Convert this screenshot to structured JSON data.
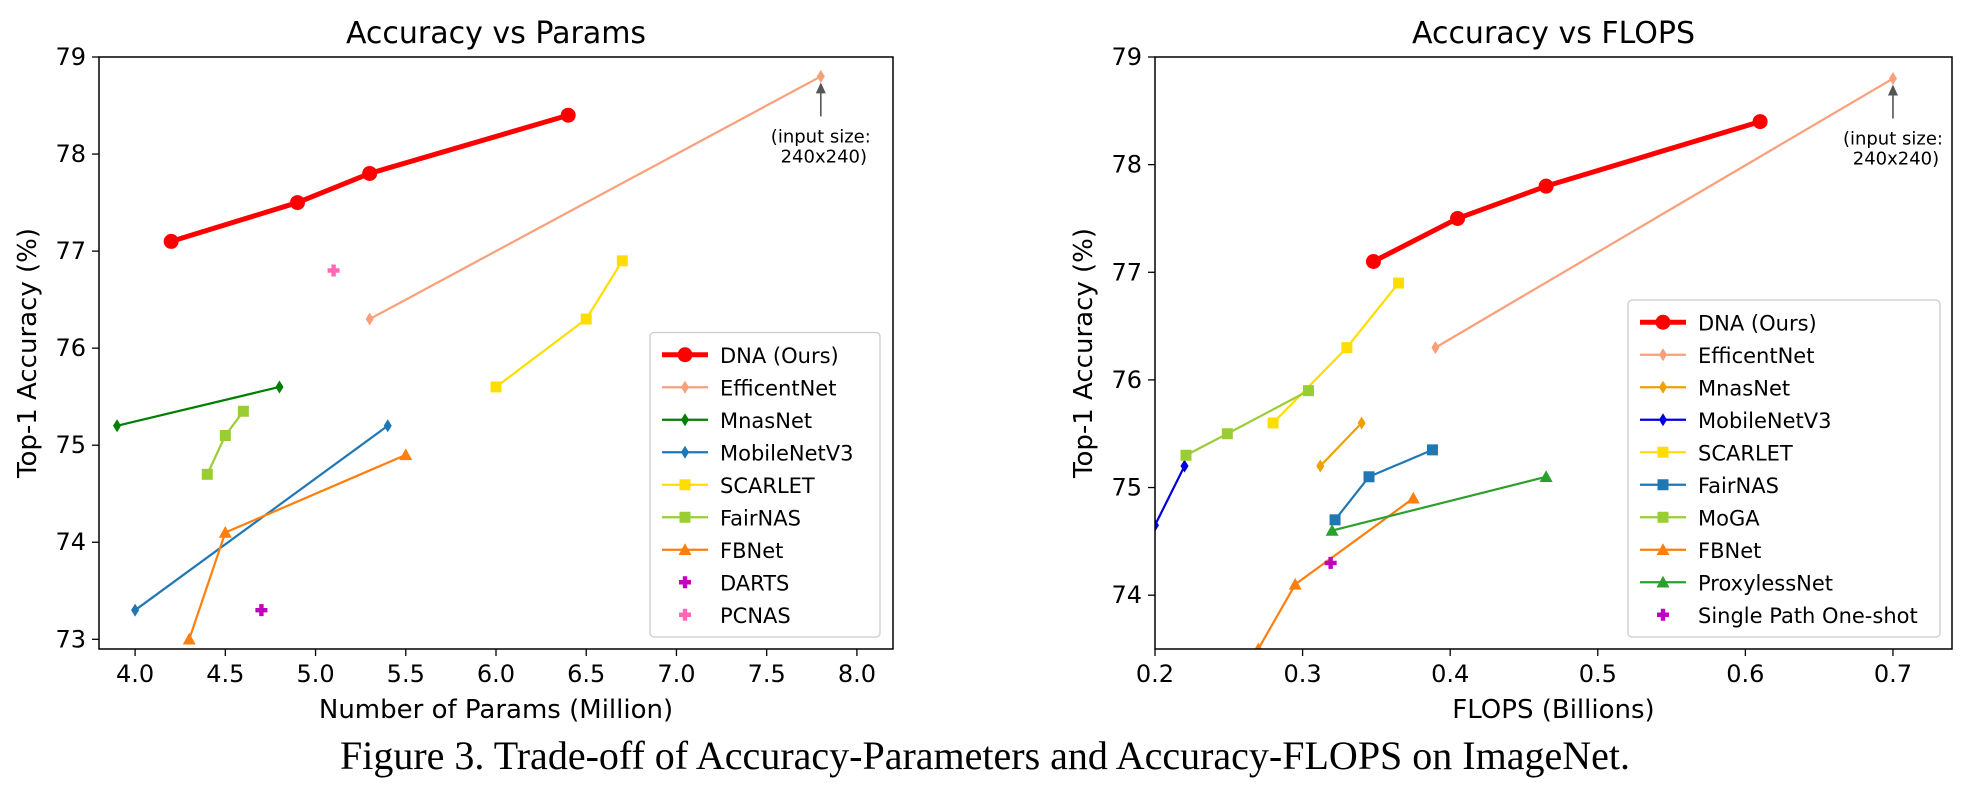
{
  "caption": "Figure 3. Trade-off of Accuracy-Parameters and Accuracy-FLOPS on ImageNet.",
  "chart_data": [
    {
      "type": "line",
      "title": "Accuracy vs Params",
      "xlabel": "Number of Params (Million)",
      "ylabel": "Top-1 Accuracy (%)",
      "xlim": [
        3.8,
        8.2
      ],
      "ylim": [
        72.9,
        79.0
      ],
      "xticks": [
        4.0,
        4.5,
        5.0,
        5.5,
        6.0,
        6.5,
        7.0,
        7.5,
        8.0
      ],
      "xtick_labels": [
        "4.0",
        "4.5",
        "5.0",
        "5.5",
        "6.0",
        "6.5",
        "7.0",
        "7.5",
        "8.0"
      ],
      "yticks": [
        73,
        74,
        75,
        76,
        77,
        78,
        79
      ],
      "ytick_labels": [
        "73",
        "74",
        "75",
        "76",
        "77",
        "78",
        "79"
      ],
      "grid": false,
      "legend_position": "lower-right",
      "annotation": {
        "text_lines": [
          "(input size:",
          "240x240)"
        ],
        "x": 7.8,
        "y": 78.8
      },
      "series": [
        {
          "name": "DNA (Ours)",
          "color": "#ff0000",
          "marker": "circle",
          "bold": true,
          "points": [
            [
              4.2,
              77.1
            ],
            [
              4.9,
              77.5
            ],
            [
              5.3,
              77.8
            ],
            [
              6.4,
              78.4
            ]
          ]
        },
        {
          "name": "EfficentNet",
          "color": "#f9a07a",
          "marker": "diamond",
          "points": [
            [
              5.3,
              76.3
            ],
            [
              7.8,
              78.8
            ]
          ]
        },
        {
          "name": "MnasNet",
          "color": "#007f00",
          "marker": "diamond",
          "points": [
            [
              3.9,
              75.2
            ],
            [
              4.8,
              75.6
            ]
          ]
        },
        {
          "name": "MobileNetV3",
          "color": "#1f77b4",
          "marker": "diamond",
          "points": [
            [
              4.0,
              73.3
            ],
            [
              5.4,
              75.2
            ]
          ]
        },
        {
          "name": "SCARLET",
          "color": "#ffdd00",
          "marker": "square",
          "points": [
            [
              6.0,
              75.6
            ],
            [
              6.5,
              76.3
            ],
            [
              6.7,
              76.9
            ]
          ]
        },
        {
          "name": "FairNAS",
          "color": "#9acd32",
          "marker": "square",
          "points": [
            [
              4.4,
              74.7
            ],
            [
              4.5,
              75.1
            ],
            [
              4.6,
              75.35
            ]
          ]
        },
        {
          "name": "FBNet",
          "color": "#ff7f0e",
          "marker": "triangle",
          "points": [
            [
              4.3,
              73.0
            ],
            [
              4.5,
              74.1
            ],
            [
              5.5,
              74.9
            ]
          ]
        },
        {
          "name": "DARTS",
          "color": "#bf00bf",
          "marker": "plus",
          "points": [
            [
              4.7,
              73.3
            ]
          ]
        },
        {
          "name": "PCNAS",
          "color": "#ff69b4",
          "marker": "plus",
          "points": [
            [
              5.1,
              76.8
            ]
          ]
        }
      ]
    },
    {
      "type": "line",
      "title": "Accuracy vs FLOPS",
      "xlabel": "FLOPS (Billions)",
      "ylabel": "Top-1 Accuracy (%)",
      "xlim": [
        0.2,
        0.74
      ],
      "ylim": [
        73.5,
        79.0
      ],
      "xticks": [
        0.2,
        0.3,
        0.4,
        0.5,
        0.6,
        0.7
      ],
      "xtick_labels": [
        "0.2",
        "0.3",
        "0.4",
        "0.5",
        "0.6",
        "0.7"
      ],
      "yticks": [
        74,
        75,
        76,
        77,
        78,
        79
      ],
      "ytick_labels": [
        "74",
        "75",
        "76",
        "77",
        "78",
        "79"
      ],
      "grid": false,
      "legend_position": "lower-right",
      "annotation": {
        "text_lines": [
          "(input size:",
          "240x240)"
        ],
        "x": 0.7,
        "y": 78.8
      },
      "series": [
        {
          "name": "DNA (Ours)",
          "color": "#ff0000",
          "marker": "circle",
          "bold": true,
          "points": [
            [
              0.348,
              77.1
            ],
            [
              0.405,
              77.5
            ],
            [
              0.465,
              77.8
            ],
            [
              0.61,
              78.4
            ]
          ]
        },
        {
          "name": "EfficentNet",
          "color": "#f9a07a",
          "marker": "diamond",
          "points": [
            [
              0.39,
              76.3
            ],
            [
              0.7,
              78.8
            ]
          ]
        },
        {
          "name": "MnasNet",
          "color": "#f0a000",
          "marker": "diamond",
          "points": [
            [
              0.312,
              75.2
            ],
            [
              0.34,
              75.6
            ]
          ]
        },
        {
          "name": "MobileNetV3",
          "color": "#0000dd",
          "marker": "diamond",
          "points": [
            [
              0.2,
              74.65
            ],
            [
              0.22,
              75.2
            ]
          ]
        },
        {
          "name": "SCARLET",
          "color": "#ffdd00",
          "marker": "square",
          "points": [
            [
              0.28,
              75.6
            ],
            [
              0.33,
              76.3
            ],
            [
              0.365,
              76.9
            ]
          ]
        },
        {
          "name": "FairNAS",
          "color": "#1f77b4",
          "marker": "square",
          "points": [
            [
              0.322,
              74.7
            ],
            [
              0.345,
              75.1
            ],
            [
              0.388,
              75.35
            ]
          ]
        },
        {
          "name": "MoGA",
          "color": "#9acd32",
          "marker": "square",
          "points": [
            [
              0.221,
              75.3
            ],
            [
              0.249,
              75.5
            ],
            [
              0.304,
              75.9
            ]
          ]
        },
        {
          "name": "FBNet",
          "color": "#ff7f0e",
          "marker": "triangle",
          "points": [
            [
              0.27,
              73.5
            ],
            [
              0.295,
              74.1
            ],
            [
              0.375,
              74.9
            ]
          ]
        },
        {
          "name": "ProxylessNet",
          "color": "#2ca02c",
          "marker": "triangle",
          "points": [
            [
              0.32,
              74.6
            ],
            [
              0.465,
              75.1
            ]
          ]
        },
        {
          "name": "Single Path One-shot",
          "color": "#bf00bf",
          "marker": "plus",
          "points": [
            [
              0.319,
              74.3
            ]
          ]
        }
      ]
    }
  ]
}
